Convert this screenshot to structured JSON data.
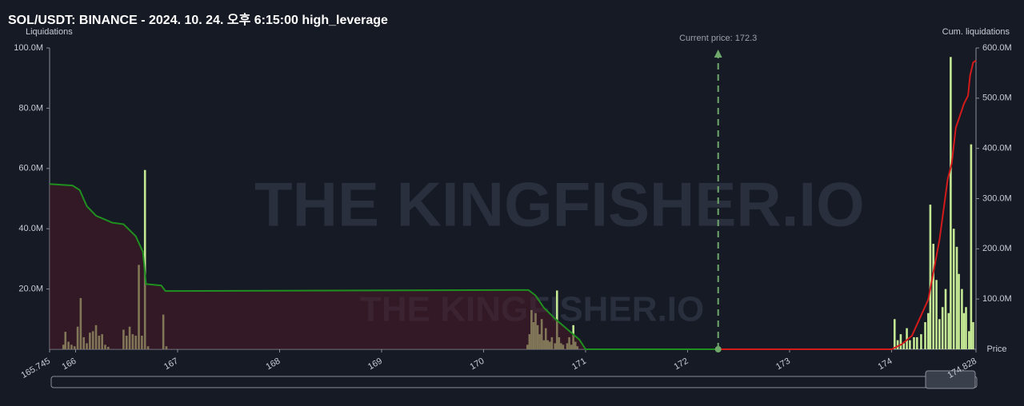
{
  "chart_data": {
    "type": "bar",
    "title": "SOL/USDT: BINANCE - 2024. 10. 24. 오후 6:15:00 high_leverage",
    "y_label": "Liquidations",
    "y2_label": "Cum. liquidations",
    "x_label": "Price",
    "watermark": "THE KINGFISHER.IO",
    "current_price": {
      "value": 172.3,
      "label": "Current price: 172.3"
    },
    "xlim": [
      165.745,
      174.828
    ],
    "xticks": [
      165.745,
      166,
      167,
      168,
      169,
      170,
      171,
      172,
      173,
      174,
      174.828
    ],
    "ylim": [
      0,
      100000000
    ],
    "yticks": [
      {
        "value": 20000000,
        "label": "20.0M"
      },
      {
        "value": 40000000,
        "label": "40.0M"
      },
      {
        "value": 60000000,
        "label": "60.0M"
      },
      {
        "value": 80000000,
        "label": "80.0M"
      },
      {
        "value": 100000000,
        "label": "100.0M"
      }
    ],
    "y2lim": [
      0,
      600000000
    ],
    "y2ticks": [
      {
        "value": 100000000,
        "label": "100.0M"
      },
      {
        "value": 200000000,
        "label": "200.0M"
      },
      {
        "value": 300000000,
        "label": "300.0M"
      },
      {
        "value": 400000000,
        "label": "400.0M"
      },
      {
        "value": 500000000,
        "label": "500.0M"
      },
      {
        "value": 600000000,
        "label": "600.0M"
      }
    ],
    "grid": false,
    "series": [
      {
        "type": "bar",
        "color": "#c4e894",
        "x": [
          165.88,
          165.9,
          165.93,
          165.96,
          165.99,
          166.02,
          166.05,
          166.08,
          166.11,
          166.14,
          166.17,
          166.2,
          166.23,
          166.26,
          166.29,
          166.32,
          166.47,
          166.5,
          166.53,
          166.56,
          166.59,
          166.62,
          166.65,
          166.68,
          166.71,
          166.86,
          166.89,
          170.43,
          170.45,
          170.47,
          170.49,
          170.51,
          170.53,
          170.55,
          170.57,
          170.59,
          170.61,
          170.63,
          170.65,
          170.67,
          170.7,
          170.72,
          170.74,
          170.76,
          170.78,
          170.82,
          170.84,
          170.86,
          170.88,
          170.9,
          170.92,
          174.03,
          174.06,
          174.09,
          174.12,
          174.15,
          174.18,
          174.22,
          174.25,
          174.29,
          174.33,
          174.36,
          174.38,
          174.41,
          174.44,
          174.47,
          174.5,
          174.53,
          174.56,
          174.58,
          174.61,
          174.64,
          174.66,
          174.69,
          174.71,
          174.73,
          174.76,
          174.78,
          174.8
        ],
        "values": [
          1500000,
          5800000,
          2500000,
          1500000,
          1000000,
          7500000,
          17000000,
          4000000,
          2000000,
          5500000,
          6000000,
          8000000,
          4500000,
          5000000,
          1500000,
          800000,
          6500000,
          4500000,
          7500000,
          5000000,
          4500000,
          28000000,
          4500000,
          59500000,
          1000000,
          11500000,
          1000000,
          1500000,
          5000000,
          13000000,
          9000000,
          12000000,
          8000000,
          5000000,
          10000000,
          3000000,
          7000000,
          3000000,
          2500000,
          4000000,
          2000000,
          19500000,
          4000000,
          2000000,
          1500000,
          2000000,
          4000000,
          1500000,
          8000000,
          2500000,
          1000000,
          10000000,
          3000000,
          5000000,
          2000000,
          7000000,
          3000000,
          4000000,
          4000000,
          5000000,
          9000000,
          12000000,
          48000000,
          35000000,
          23000000,
          10000000,
          14000000,
          20000000,
          12000000,
          97000000,
          40000000,
          34000000,
          25000000,
          20000000,
          12000000,
          14000000,
          6000000,
          68000000,
          9000000
        ]
      },
      {
        "type": "line",
        "axis": "y2",
        "color": "#1f8f1f",
        "fill": "#4a1a26",
        "x": [
          165.745,
          165.97,
          166.04,
          166.11,
          166.2,
          166.36,
          166.47,
          166.59,
          166.66,
          166.69,
          166.84,
          166.88,
          170.44,
          170.51,
          170.59,
          170.71,
          170.82,
          170.94,
          171.0,
          172.3
        ],
        "values": [
          329000000,
          326000000,
          317000000,
          285000000,
          266000000,
          252000000,
          249000000,
          225000000,
          194000000,
          130000000,
          127000000,
          116000000,
          118000000,
          107000000,
          83000000,
          59000000,
          40000000,
          19000000,
          0,
          0
        ]
      },
      {
        "type": "line",
        "axis": "y2",
        "color": "#d41a1a",
        "x": [
          172.3,
          174.0,
          174.1,
          174.2,
          174.36,
          174.47,
          174.55,
          174.59,
          174.63,
          174.71,
          174.75,
          174.77,
          174.8,
          174.828
        ],
        "values": [
          0,
          0,
          10000000,
          27000000,
          99000000,
          218000000,
          338000000,
          370000000,
          441000000,
          489000000,
          505000000,
          545000000,
          571000000,
          575000000
        ]
      }
    ]
  }
}
